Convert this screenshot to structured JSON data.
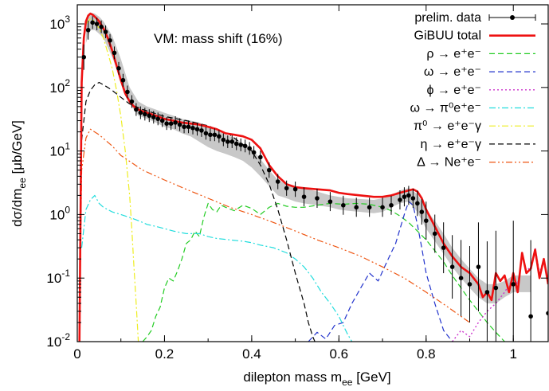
{
  "chart_data": {
    "type": "line",
    "annotation": "VM: mass shift (16%)",
    "xlabel": "dilepton mass m_ee [GeV]",
    "ylabel": "dσ/dm_ee [μb/GeV]",
    "xlim": [
      0,
      1.08
    ],
    "ylim": [
      0.01,
      2000
    ],
    "yscale": "log",
    "grid": false,
    "legend_position": "top-right",
    "x_ticks": [
      {
        "v": 0,
        "label": "0"
      },
      {
        "v": 0.2,
        "label": "0.2"
      },
      {
        "v": 0.4,
        "label": "0.4"
      },
      {
        "v": 0.6,
        "label": "0.6"
      },
      {
        "v": 0.8,
        "label": "0.8"
      },
      {
        "v": 1.0,
        "label": "1"
      }
    ],
    "y_ticks": [
      {
        "v": 0.01,
        "base": "10",
        "exp": "-2"
      },
      {
        "v": 0.1,
        "base": "10",
        "exp": "-1"
      },
      {
        "v": 1,
        "base": "10",
        "exp": "0"
      },
      {
        "v": 10,
        "base": "10",
        "exp": "1"
      },
      {
        "v": 100,
        "base": "10",
        "exp": "2"
      },
      {
        "v": 1000,
        "base": "10",
        "exp": "3"
      }
    ],
    "band": {
      "color": "#c8c8c8",
      "x": [
        0.02,
        0.03,
        0.04,
        0.05,
        0.06,
        0.08,
        0.1,
        0.12,
        0.14,
        0.16,
        0.18,
        0.2,
        0.22,
        0.24,
        0.26,
        0.28,
        0.3,
        0.32,
        0.34,
        0.36,
        0.38,
        0.4,
        0.42,
        0.44,
        0.46,
        0.48,
        0.5,
        0.52,
        0.55,
        0.58,
        0.6,
        0.62,
        0.65,
        0.68,
        0.7,
        0.72,
        0.74,
        0.76,
        0.78,
        0.8,
        0.82,
        0.84,
        0.86,
        0.88,
        0.9,
        0.92,
        0.94,
        0.96,
        0.98,
        1.0,
        1.02,
        1.04
      ],
      "lo": [
        500,
        800,
        800,
        700,
        600,
        300,
        130,
        55,
        36,
        32,
        28,
        24,
        22,
        19,
        17,
        14,
        11.5,
        10,
        9,
        8,
        7,
        5.5,
        4,
        2.8,
        2,
        1.8,
        1.6,
        1.5,
        1.4,
        1.3,
        1.2,
        1.15,
        1.1,
        1.05,
        1.1,
        1.3,
        1.5,
        1.6,
        1.1,
        0.6,
        0.38,
        0.24,
        0.15,
        0.1,
        0.07,
        0.05,
        0.04,
        0.04,
        0.05,
        0.06,
        0.06,
        0.06
      ],
      "hi": [
        1100,
        1500,
        1450,
        1300,
        1100,
        650,
        280,
        100,
        60,
        50,
        45,
        40,
        36,
        32,
        30,
        28,
        24,
        21,
        18,
        16,
        13,
        11,
        7.5,
        5,
        3.5,
        3,
        2.8,
        2.6,
        2.3,
        2.0,
        1.9,
        1.8,
        1.75,
        1.7,
        1.8,
        2.0,
        2.4,
        2.6,
        2.1,
        1.2,
        0.8,
        0.5,
        0.3,
        0.2,
        0.14,
        0.1,
        0.08,
        0.08,
        0.09,
        0.11,
        0.11,
        0.11
      ]
    },
    "series": [
      {
        "name": "prelim. data",
        "style": "points",
        "color": "#000000",
        "x": [
          0.015,
          0.025,
          0.035,
          0.045,
          0.055,
          0.065,
          0.075,
          0.085,
          0.095,
          0.105,
          0.115,
          0.125,
          0.135,
          0.145,
          0.155,
          0.165,
          0.175,
          0.185,
          0.195,
          0.205,
          0.215,
          0.225,
          0.235,
          0.245,
          0.255,
          0.265,
          0.275,
          0.285,
          0.295,
          0.305,
          0.315,
          0.325,
          0.335,
          0.345,
          0.355,
          0.365,
          0.375,
          0.385,
          0.395,
          0.405,
          0.42,
          0.44,
          0.46,
          0.48,
          0.5,
          0.52,
          0.55,
          0.58,
          0.61,
          0.64,
          0.67,
          0.7,
          0.72,
          0.74,
          0.75,
          0.76,
          0.77,
          0.78,
          0.79,
          0.8,
          0.82,
          0.84,
          0.86,
          0.88,
          0.9,
          0.92,
          0.94,
          0.96,
          1.0,
          1.04,
          1.08
        ],
        "y": [
          300,
          800,
          1050,
          1000,
          900,
          750,
          550,
          350,
          200,
          130,
          85,
          60,
          45,
          40,
          38,
          36,
          34,
          32,
          30,
          27,
          27,
          28,
          26,
          24,
          24,
          23,
          22,
          21,
          19,
          18,
          18,
          17,
          15,
          14,
          14,
          13,
          12.5,
          12,
          11,
          9.5,
          8,
          5,
          3.3,
          2.6,
          2.5,
          1.9,
          1.8,
          1.6,
          1.4,
          1.3,
          1.3,
          1.3,
          1.4,
          1.7,
          1.9,
          2.0,
          1.8,
          1.5,
          1.1,
          0.8,
          0.5,
          0.3,
          0.15,
          0.1,
          0.08,
          0.15,
          0.06,
          0.07,
          0.08,
          0.025,
          0.028
        ],
        "yerr": [
          0.2,
          0.15,
          0.1,
          0.1,
          0.1,
          0.1,
          0.1,
          0.1,
          0.1,
          0.1,
          0.1,
          0.1,
          0.1,
          0.1,
          0.1,
          0.1,
          0.1,
          0.1,
          0.1,
          0.1,
          0.1,
          0.1,
          0.1,
          0.1,
          0.1,
          0.1,
          0.1,
          0.1,
          0.1,
          0.1,
          0.1,
          0.1,
          0.1,
          0.1,
          0.1,
          0.1,
          0.1,
          0.1,
          0.1,
          0.1,
          0.1,
          0.12,
          0.12,
          0.12,
          0.12,
          0.15,
          0.15,
          0.15,
          0.15,
          0.15,
          0.15,
          0.15,
          0.15,
          0.15,
          0.15,
          0.15,
          0.15,
          0.2,
          0.2,
          0.3,
          0.3,
          0.4,
          0.5,
          0.6,
          0.6,
          0.7,
          0.8,
          0.9,
          1.0,
          1.2,
          1.2
        ]
      },
      {
        "name": "GiBUU total",
        "style": "solid",
        "color": "#ee1111",
        "width": 2.6,
        "x": [
          0.005,
          0.01,
          0.015,
          0.02,
          0.025,
          0.03,
          0.035,
          0.04,
          0.05,
          0.06,
          0.07,
          0.08,
          0.09,
          0.1,
          0.11,
          0.12,
          0.13,
          0.14,
          0.15,
          0.16,
          0.18,
          0.2,
          0.22,
          0.24,
          0.26,
          0.28,
          0.3,
          0.32,
          0.34,
          0.36,
          0.38,
          0.4,
          0.42,
          0.44,
          0.46,
          0.48,
          0.5,
          0.52,
          0.55,
          0.58,
          0.6,
          0.62,
          0.65,
          0.68,
          0.7,
          0.72,
          0.74,
          0.76,
          0.77,
          0.78,
          0.79,
          0.8,
          0.82,
          0.84,
          0.86,
          0.88,
          0.9,
          0.92,
          0.93,
          0.94,
          0.95,
          0.96,
          0.97,
          0.98,
          0.99,
          1.0,
          1.01,
          1.02,
          1.03,
          1.04,
          1.05,
          1.06,
          1.07,
          1.08
        ],
        "y": [
          0.01,
          120,
          600,
          1100,
          1350,
          1450,
          1400,
          1300,
          1100,
          850,
          600,
          380,
          220,
          130,
          80,
          60,
          50,
          45,
          42,
          40,
          36,
          32,
          30,
          28,
          27,
          26,
          24,
          22,
          19,
          18,
          17,
          15,
          11,
          6,
          4,
          3,
          2.7,
          2.6,
          2.5,
          2.4,
          2.2,
          2.1,
          2.0,
          1.9,
          1.9,
          2.0,
          2.2,
          2.4,
          2.5,
          2.3,
          1.8,
          1.2,
          0.65,
          0.35,
          0.22,
          0.15,
          0.12,
          0.08,
          0.05,
          0.06,
          0.045,
          0.12,
          0.09,
          0.11,
          0.06,
          0.12,
          0.06,
          0.25,
          0.12,
          0.14,
          0.28,
          0.1,
          0.2,
          0.08
        ]
      },
      {
        "name": "ρ → e⁺e⁻",
        "style": "dash",
        "color": "#22cc22",
        "width": 1.2,
        "x": [
          0.15,
          0.16,
          0.17,
          0.18,
          0.19,
          0.2,
          0.21,
          0.22,
          0.23,
          0.24,
          0.25,
          0.26,
          0.27,
          0.28,
          0.29,
          0.3,
          0.31,
          0.32,
          0.33,
          0.34,
          0.36,
          0.38,
          0.4,
          0.42,
          0.44,
          0.46,
          0.48,
          0.5,
          0.52,
          0.55,
          0.58,
          0.61,
          0.64,
          0.67,
          0.7,
          0.72,
          0.74,
          0.76,
          0.78,
          0.8,
          0.82,
          0.84,
          0.86,
          0.88,
          0.9,
          0.92,
          0.94,
          0.96,
          0.98
        ],
        "y": [
          0.01,
          0.012,
          0.015,
          0.025,
          0.035,
          0.07,
          0.1,
          0.09,
          0.13,
          0.2,
          0.35,
          0.4,
          0.55,
          0.45,
          0.9,
          1.5,
          1.2,
          1.1,
          1.4,
          1.3,
          1.15,
          1.4,
          1.25,
          1.0,
          1.3,
          1.5,
          1.35,
          1.3,
          1.3,
          1.4,
          1.5,
          1.45,
          1.5,
          1.45,
          1.3,
          1.15,
          0.95,
          0.75,
          0.55,
          0.4,
          0.27,
          0.18,
          0.11,
          0.07,
          0.045,
          0.03,
          0.02,
          0.014,
          0.01
        ]
      },
      {
        "name": "ω → e⁺e⁻",
        "style": "dash",
        "color": "#2233cc",
        "width": 1.2,
        "x": [
          0.53,
          0.55,
          0.57,
          0.59,
          0.61,
          0.63,
          0.65,
          0.67,
          0.69,
          0.71,
          0.73,
          0.75,
          0.76,
          0.77,
          0.78,
          0.79,
          0.8,
          0.82,
          0.84,
          0.86
        ],
        "y": [
          0.01,
          0.014,
          0.011,
          0.018,
          0.02,
          0.04,
          0.07,
          0.12,
          0.09,
          0.18,
          0.35,
          1.0,
          1.6,
          1.4,
          0.7,
          0.3,
          0.12,
          0.04,
          0.015,
          0.01
        ]
      },
      {
        "name": "ϕ → e⁺e⁻",
        "style": "dot",
        "color": "#cc33cc",
        "width": 1.4,
        "x": [
          0.86,
          0.88,
          0.9,
          0.92,
          0.94,
          0.96,
          0.98,
          1.0,
          1.01,
          1.02,
          1.03,
          1.04,
          1.05,
          1.06,
          1.07
        ],
        "y": [
          0.01,
          0.015,
          0.012,
          0.02,
          0.03,
          0.04,
          0.06,
          0.1,
          0.08,
          0.22,
          0.13,
          0.15,
          0.3,
          0.12,
          0.2
        ]
      },
      {
        "name": "ω → π⁰e⁺e⁻",
        "style": "dashdot",
        "color": "#22dddd",
        "width": 1.2,
        "x": [
          0.01,
          0.02,
          0.03,
          0.04,
          0.05,
          0.06,
          0.08,
          0.1,
          0.12,
          0.14,
          0.16,
          0.18,
          0.2,
          0.22,
          0.25,
          0.28,
          0.3,
          0.32,
          0.35,
          0.38,
          0.4,
          0.42,
          0.45,
          0.48,
          0.5,
          0.52,
          0.54,
          0.56,
          0.58,
          0.6,
          0.61,
          0.62,
          0.63
        ],
        "y": [
          0.3,
          1.2,
          1.7,
          2.0,
          1.5,
          1.3,
          1.1,
          1.0,
          0.9,
          0.8,
          0.7,
          0.65,
          0.6,
          0.55,
          0.5,
          0.5,
          0.45,
          0.42,
          0.4,
          0.38,
          0.36,
          0.33,
          0.3,
          0.25,
          0.2,
          0.15,
          0.1,
          0.06,
          0.04,
          0.025,
          0.018,
          0.013,
          0.01
        ]
      },
      {
        "name": "π⁰ → e⁺e⁻γ",
        "style": "dashdot",
        "color": "#eeee22",
        "width": 1.2,
        "x": [
          0.005,
          0.01,
          0.015,
          0.02,
          0.03,
          0.04,
          0.05,
          0.06,
          0.07,
          0.08,
          0.09,
          0.1,
          0.11,
          0.12,
          0.125,
          0.13,
          0.135,
          0.14
        ],
        "y": [
          0.01,
          150,
          600,
          1000,
          1200,
          1100,
          850,
          600,
          350,
          200,
          90,
          35,
          10,
          2,
          0.6,
          0.15,
          0.04,
          0.01
        ]
      },
      {
        "name": "η → e⁺e⁻γ",
        "style": "dash",
        "color": "#000000",
        "width": 1.2,
        "x": [
          0.005,
          0.01,
          0.02,
          0.03,
          0.04,
          0.05,
          0.06,
          0.07,
          0.08,
          0.1,
          0.12,
          0.15,
          0.2,
          0.25,
          0.3,
          0.35,
          0.4,
          0.42,
          0.44,
          0.46,
          0.48,
          0.5,
          0.52,
          0.53,
          0.54,
          0.545
        ],
        "y": [
          0.01,
          15,
          60,
          90,
          110,
          120,
          110,
          100,
          90,
          70,
          55,
          45,
          35,
          30,
          25,
          18,
          10,
          6,
          3,
          1.2,
          0.4,
          0.12,
          0.04,
          0.02,
          0.012,
          0.01
        ]
      },
      {
        "name": "Δ → Ne⁺e⁻",
        "style": "dashdotdot",
        "color": "#ee5511",
        "width": 1.2,
        "x": [
          0.005,
          0.01,
          0.02,
          0.03,
          0.05,
          0.08,
          0.1,
          0.15,
          0.2,
          0.25,
          0.3,
          0.35,
          0.4,
          0.45,
          0.5,
          0.55,
          0.6,
          0.65,
          0.7,
          0.75,
          0.8,
          0.85,
          0.9
        ],
        "y": [
          0.01,
          5,
          16,
          22,
          18,
          12,
          8.5,
          5,
          3.5,
          2.5,
          1.8,
          1.3,
          1.0,
          0.75,
          0.55,
          0.4,
          0.3,
          0.22,
          0.15,
          0.1,
          0.06,
          0.035,
          0.02
        ]
      }
    ]
  }
}
